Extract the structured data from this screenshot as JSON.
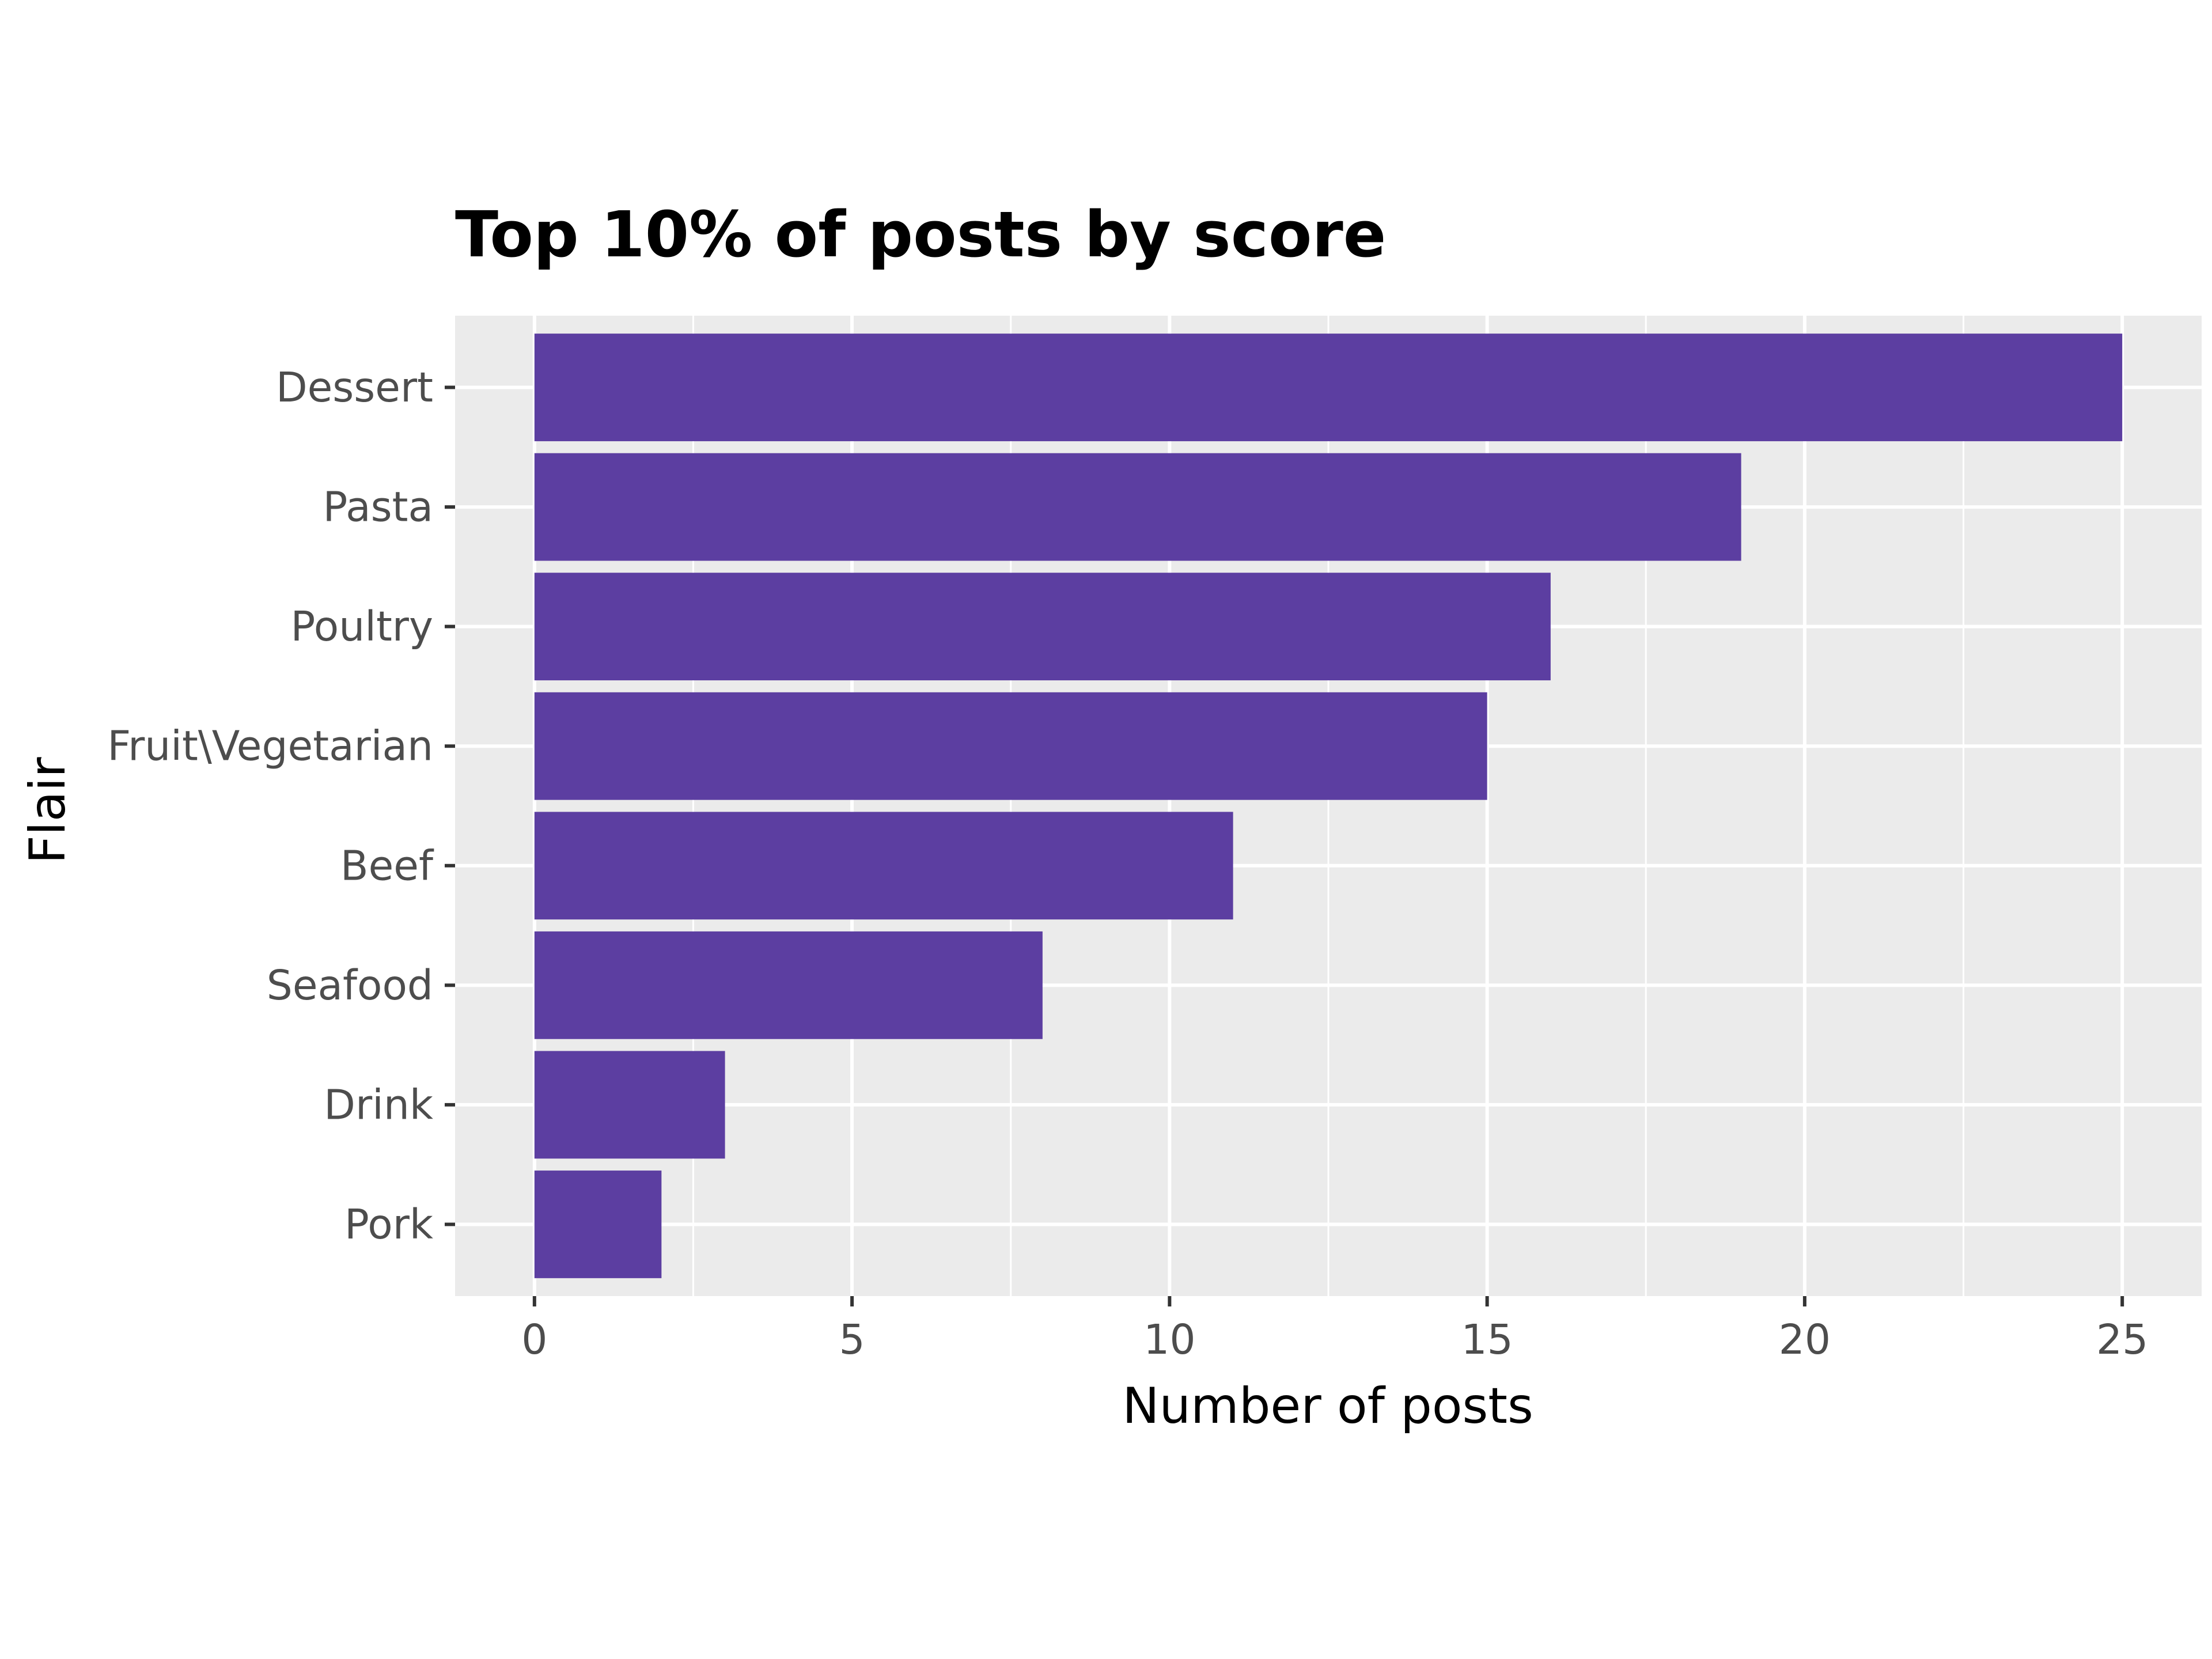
{
  "colors": {
    "bar": "#5c3ea1",
    "panel_background": "#ebebeb",
    "grid": "#ffffff",
    "tick_text": "#4d4d4d",
    "tick_mark": "#333333"
  },
  "chart_data": {
    "type": "bar",
    "orientation": "horizontal",
    "title": "Top 10% of posts by score",
    "xlabel": "Number of posts",
    "ylabel": "Flair",
    "categories": [
      "Dessert",
      "Pasta",
      "Poultry",
      "Fruit\\Vegetarian",
      "Beef",
      "Seafood",
      "Drink",
      "Pork"
    ],
    "values": [
      25,
      19,
      16,
      15,
      11,
      8,
      3,
      2
    ],
    "xlim": [
      -1.25,
      26.25
    ],
    "xticks": [
      0,
      5,
      10,
      15,
      20,
      25
    ],
    "xtick_labels": [
      "0",
      "5",
      "10",
      "15",
      "20",
      "25"
    ],
    "grid": true,
    "legend": "none"
  }
}
